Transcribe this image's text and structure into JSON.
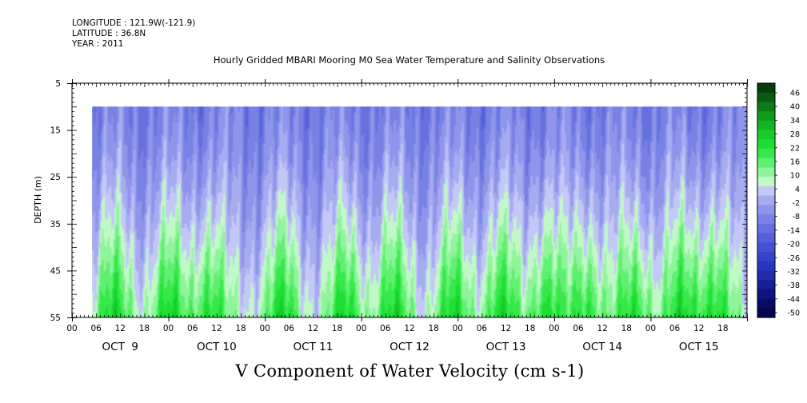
{
  "header": {
    "longitude": "LONGITUDE : 121.9W(-121.9)",
    "latitude": "LATITUDE : 36.8N",
    "year": "YEAR : 2011"
  },
  "chart_data": {
    "type": "heatmap",
    "title": "Hourly Gridded MBARI Mooring M0 Sea Water Temperature and Salinity Observations",
    "xlabel": "V Component of Water Velocity (cm s-1)",
    "ylabel": "DEPTH (m)",
    "ylim": [
      55,
      5
    ],
    "y_ticks": [
      5,
      15,
      25,
      35,
      45,
      55
    ],
    "data_depth_range": [
      10,
      55
    ],
    "x_hour_ticks": [
      "00",
      "06",
      "12",
      "18",
      "00",
      "06",
      "12",
      "18",
      "00",
      "06",
      "12",
      "18",
      "00",
      "06",
      "12",
      "18",
      "00",
      "06",
      "12",
      "18",
      "00",
      "06",
      "12",
      "18",
      "00",
      "06",
      "12",
      "18"
    ],
    "x_day_labels": [
      "OCT  9",
      "OCT 10",
      "OCT 11",
      "OCT 12",
      "OCT 13",
      "OCT 14",
      "OCT 15"
    ],
    "x_range_hours": [
      0,
      168
    ],
    "data_start_hour": 5,
    "colorbar": {
      "labels": [
        "46",
        "40",
        "34",
        "28",
        "22",
        "16",
        "10",
        "4",
        "-2",
        "-8",
        "-14",
        "-20",
        "-26",
        "-32",
        "-38",
        "-44",
        "-50"
      ],
      "positive_colors": [
        "#063d0b",
        "#0a5a12",
        "#0d7a17",
        "#109a1d",
        "#14b424",
        "#17cc2a",
        "#1ddf33",
        "#36e84a",
        "#5ff06f",
        "#8ff59c",
        "#c0f8c6"
      ],
      "negative_colors": [
        "#c3c8f6",
        "#a6acf0",
        "#8e95ea",
        "#7881e4",
        "#6670df",
        "#555fd9",
        "#4452d2",
        "#3545cb",
        "#2837bf",
        "#1e2cae",
        "#151f96",
        "#0f1580",
        "#080c66",
        "#040650"
      ]
    },
    "approx_field_values": {
      "upper_layer_10_25m": -14,
      "lower_layer_40_55m_peaks": 16,
      "green_plumes_hours": [
        10,
        24,
        34,
        52,
        68,
        80,
        95,
        107,
        118,
        128,
        140,
        152,
        160
      ]
    }
  }
}
